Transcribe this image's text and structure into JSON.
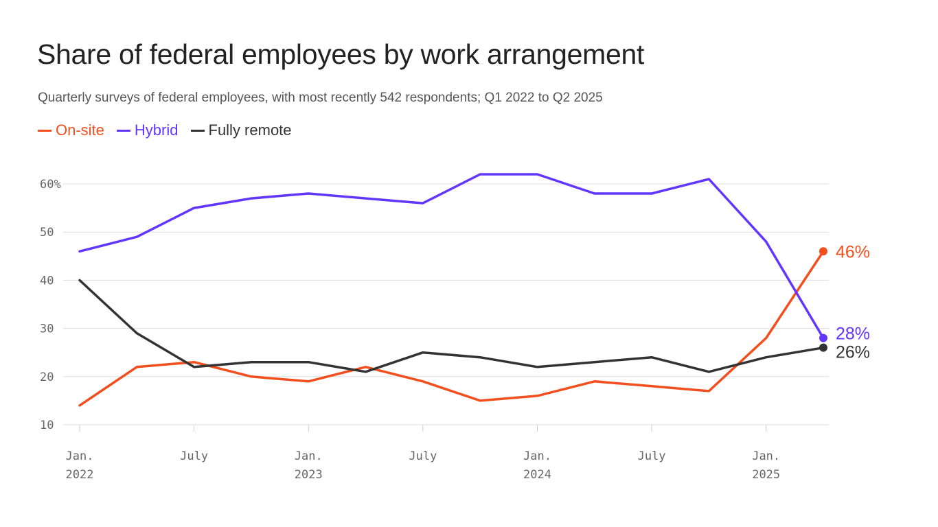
{
  "title": "Share of federal employees by work arrangement",
  "subtitle": "Quarterly surveys of federal employees, with most recently 542 respondents; Q1 2022 to Q2 2025",
  "colors": {
    "on_site": "#f24e1e",
    "hybrid": "#6236ff",
    "fully_remote": "#333333",
    "grid": "#dddddd",
    "axis_text": "#666666"
  },
  "chart_data": {
    "type": "line",
    "title": "Share of federal employees by work arrangement",
    "subtitle": "Quarterly surveys of federal employees, with most recently 542 respondents; Q1 2022 to Q2 2025",
    "x": [
      "2022-01",
      "2022-04",
      "2022-07",
      "2022-10",
      "2023-01",
      "2023-04",
      "2023-07",
      "2023-10",
      "2024-01",
      "2024-04",
      "2024-07",
      "2024-10",
      "2025-01",
      "2025-04"
    ],
    "x_ticks": [
      {
        "month": "2022-01",
        "line1": "Jan.",
        "line2": "2022"
      },
      {
        "month": "2022-07",
        "line1": "July",
        "line2": ""
      },
      {
        "month": "2023-01",
        "line1": "Jan.",
        "line2": "2023"
      },
      {
        "month": "2023-07",
        "line1": "July",
        "line2": ""
      },
      {
        "month": "2024-01",
        "line1": "Jan.",
        "line2": "2024"
      },
      {
        "month": "2024-07",
        "line1": "July",
        "line2": ""
      },
      {
        "month": "2025-01",
        "line1": "Jan.",
        "line2": "2025"
      }
    ],
    "y_ticks": [
      {
        "value": 60,
        "label": "60%"
      },
      {
        "value": 50,
        "label": "50"
      },
      {
        "value": 40,
        "label": "40"
      },
      {
        "value": 30,
        "label": "30"
      },
      {
        "value": 20,
        "label": "20"
      },
      {
        "value": 10,
        "label": "10"
      }
    ],
    "ylim": [
      10,
      60
    ],
    "ylabel": "",
    "xlabel": "",
    "grid": true,
    "legend": "top-left",
    "series": [
      {
        "key": "on_site",
        "name": "On-site",
        "color": "#f24e1e",
        "values": [
          14,
          22,
          23,
          20,
          19,
          22,
          19,
          15,
          16,
          19,
          18,
          17,
          28,
          46
        ],
        "end_label": "46%"
      },
      {
        "key": "hybrid",
        "name": "Hybrid",
        "color": "#6236ff",
        "values": [
          46,
          49,
          55,
          57,
          58,
          57,
          56,
          62,
          62,
          58,
          58,
          61,
          48,
          28
        ],
        "end_label": "28%"
      },
      {
        "key": "fully_remote",
        "name": "Fully remote",
        "color": "#333333",
        "values": [
          40,
          29,
          22,
          23,
          23,
          21,
          25,
          24,
          22,
          23,
          24,
          21,
          24,
          26
        ],
        "end_label": "26%"
      }
    ]
  }
}
